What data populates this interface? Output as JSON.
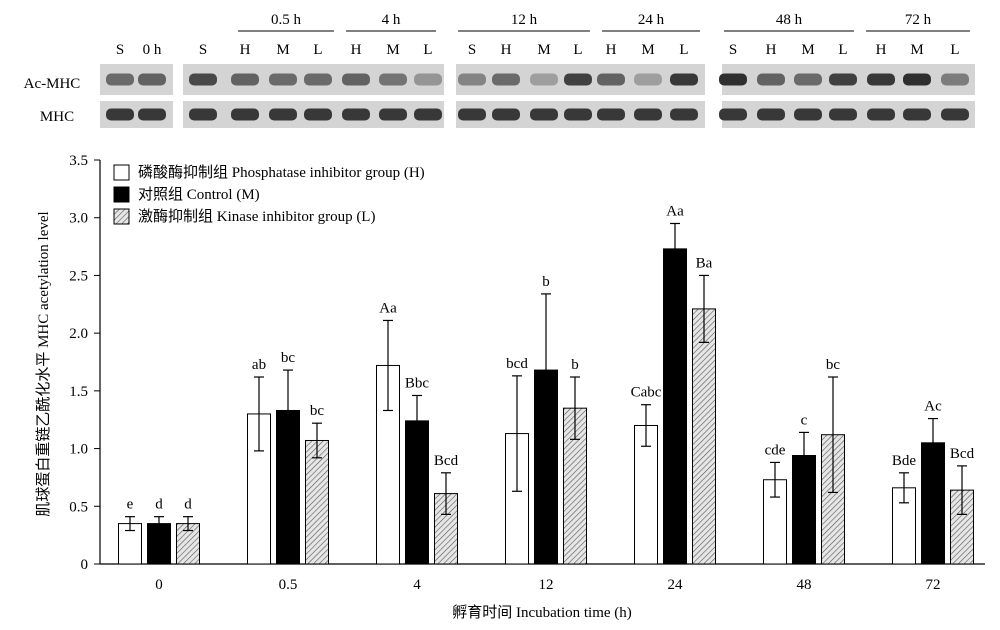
{
  "blot": {
    "rows": [
      "Ac-MHC",
      "MHC"
    ],
    "time_groups": [
      "0.5 h",
      "4 h",
      "12 h",
      "24 h",
      "48 h",
      "72 h"
    ],
    "lane_labels": [
      "S",
      "0 h",
      "S",
      "H",
      "M",
      "L",
      "H",
      "M",
      "L",
      "S",
      "H",
      "M",
      "L",
      "H",
      "M",
      "L",
      "S",
      "H",
      "M",
      "L",
      "H",
      "M",
      "L"
    ]
  },
  "chart_data": {
    "type": "bar",
    "categories": [
      "0",
      "0.5",
      "4",
      "12",
      "24",
      "48",
      "72"
    ],
    "series": [
      {
        "name": "磷酸酶抑制组 Phosphatase inhibitor group (H)",
        "fill": "white",
        "values": [
          0.35,
          1.3,
          1.72,
          1.13,
          1.2,
          0.73,
          0.66
        ],
        "errors": [
          0.06,
          0.32,
          0.39,
          0.5,
          0.18,
          0.15,
          0.13
        ],
        "labels": [
          "e",
          "ab",
          "Aa",
          "bcd",
          "Cabc",
          "cde",
          "Bde"
        ]
      },
      {
        "name": "对照组 Control (M)",
        "fill": "black",
        "values": [
          0.35,
          1.33,
          1.24,
          1.68,
          2.73,
          0.94,
          1.05
        ],
        "errors": [
          0.06,
          0.35,
          0.22,
          0.66,
          0.22,
          0.2,
          0.21
        ],
        "labels": [
          "d",
          "bc",
          "Bbc",
          "b",
          "Aa",
          "c",
          "Ac"
        ]
      },
      {
        "name": "激酶抑制组 Kinase inhibitor group (L)",
        "fill": "hatched",
        "values": [
          0.35,
          1.07,
          0.61,
          1.35,
          2.21,
          1.12,
          0.64
        ],
        "errors": [
          0.06,
          0.15,
          0.18,
          0.27,
          0.29,
          0.5,
          0.21
        ],
        "labels": [
          "d",
          "bc",
          "Bcd",
          "b",
          "Ba",
          "bc",
          "Bcd"
        ]
      }
    ],
    "xlabel": "孵育时间 Incubation time (h)",
    "ylabel": "肌球蛋白重链乙酰化水平 MHC acetylation level",
    "ylim": [
      0,
      3.5
    ],
    "yticks": [
      "0",
      "0.5",
      "1.0",
      "1.5",
      "2.0",
      "2.5",
      "3.0",
      "3.5"
    ],
    "legend_position": "top-left",
    "grid": false
  }
}
